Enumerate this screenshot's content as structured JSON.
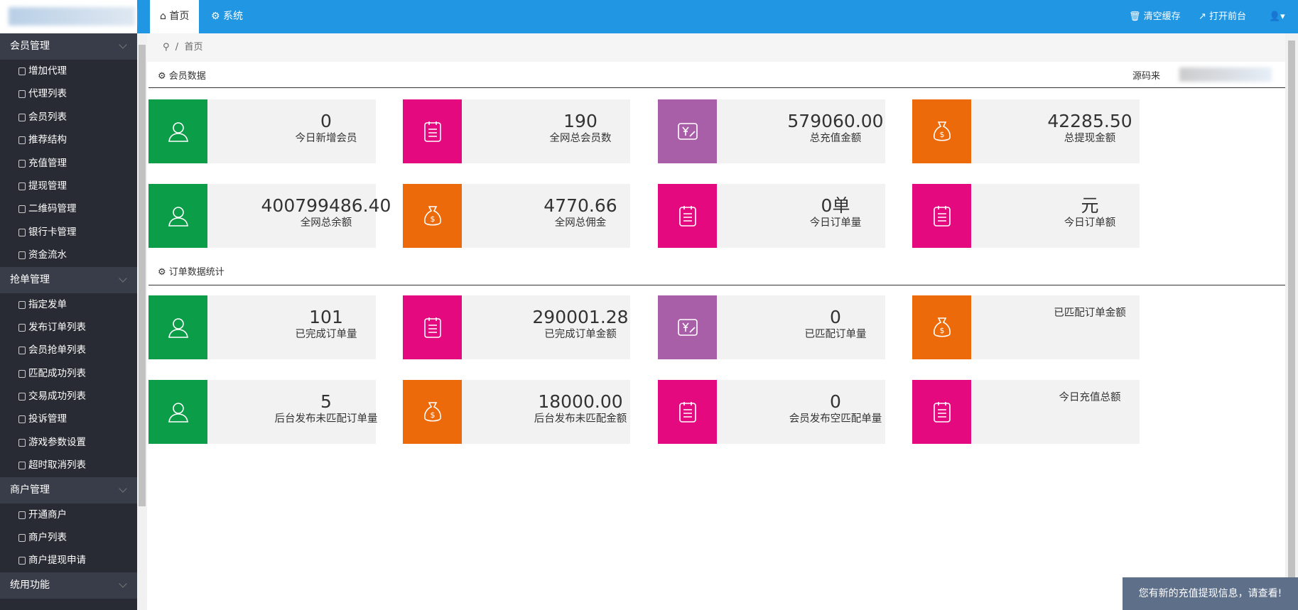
{
  "header": {
    "tabs": [
      "首页",
      "系统"
    ],
    "actions": [
      "清空缓存",
      "打开前台"
    ]
  },
  "sidebar": [
    {
      "title": "会员管理",
      "items": [
        "增加代理",
        "代理列表",
        "会员列表",
        "推荐结构",
        "充值管理",
        "提现管理",
        "二维码管理",
        "银行卡管理",
        "资金流水"
      ]
    },
    {
      "title": "抢单管理",
      "items": [
        "指定发单",
        "发布订单列表",
        "会员抢单列表",
        "匹配成功列表",
        "交易成功列表",
        "投诉管理",
        "游戏参数设置",
        "超时取消列表"
      ]
    },
    {
      "title": "商户管理",
      "items": [
        "开通商户",
        "商户列表",
        "商户提现申请"
      ]
    },
    {
      "title": "统用功能",
      "items": []
    }
  ],
  "breadcrumb": "首页",
  "sections": [
    {
      "title": "会员数据",
      "source": "源码来",
      "cards": [
        {
          "value": "0",
          "label": "今日新增会员",
          "color": "#0c9d48"
        },
        {
          "value": "190",
          "label": "全网总会员数",
          "color": "#e4097f"
        },
        {
          "value": "579060.00",
          "label": "总充值金额",
          "color": "#a95ea8"
        },
        {
          "value": "42285.50",
          "label": "总提现金额",
          "color": "#ec6a0a"
        },
        {
          "value": "400799486.40",
          "label": "全网总余额",
          "color": "#0c9d48"
        },
        {
          "value": "4770.66",
          "label": "全网总佣金",
          "color": "#ec6a0a"
        },
        {
          "value": "0单",
          "label": "今日订单量",
          "color": "#e4097f"
        },
        {
          "value": "元",
          "label": "今日订单额",
          "color": "#e4097f"
        }
      ]
    },
    {
      "title": "订单数据统计",
      "cards": [
        {
          "value": "101",
          "label": "已完成订单量",
          "color": "#0c9d48"
        },
        {
          "value": "290001.28",
          "label": "已完成订单金额",
          "color": "#e4097f"
        },
        {
          "value": "0",
          "label": "已匹配订单量",
          "color": "#a95ea8"
        },
        {
          "label": "已匹配订单金额",
          "color": "#ec6a0a"
        },
        {
          "value": "5",
          "label": "后台发布未匹配订单量",
          "color": "#0c9d48"
        },
        {
          "value": "18000.00",
          "label": "后台发布未匹配金额",
          "color": "#ec6a0a"
        },
        {
          "value": "0",
          "label": "会员发布空匹配单量",
          "color": "#e4097f"
        },
        {
          "label": "今日充值总额",
          "color": "#e4097f"
        }
      ]
    }
  ],
  "notice": "您有新的充值提现信息，请查看!"
}
